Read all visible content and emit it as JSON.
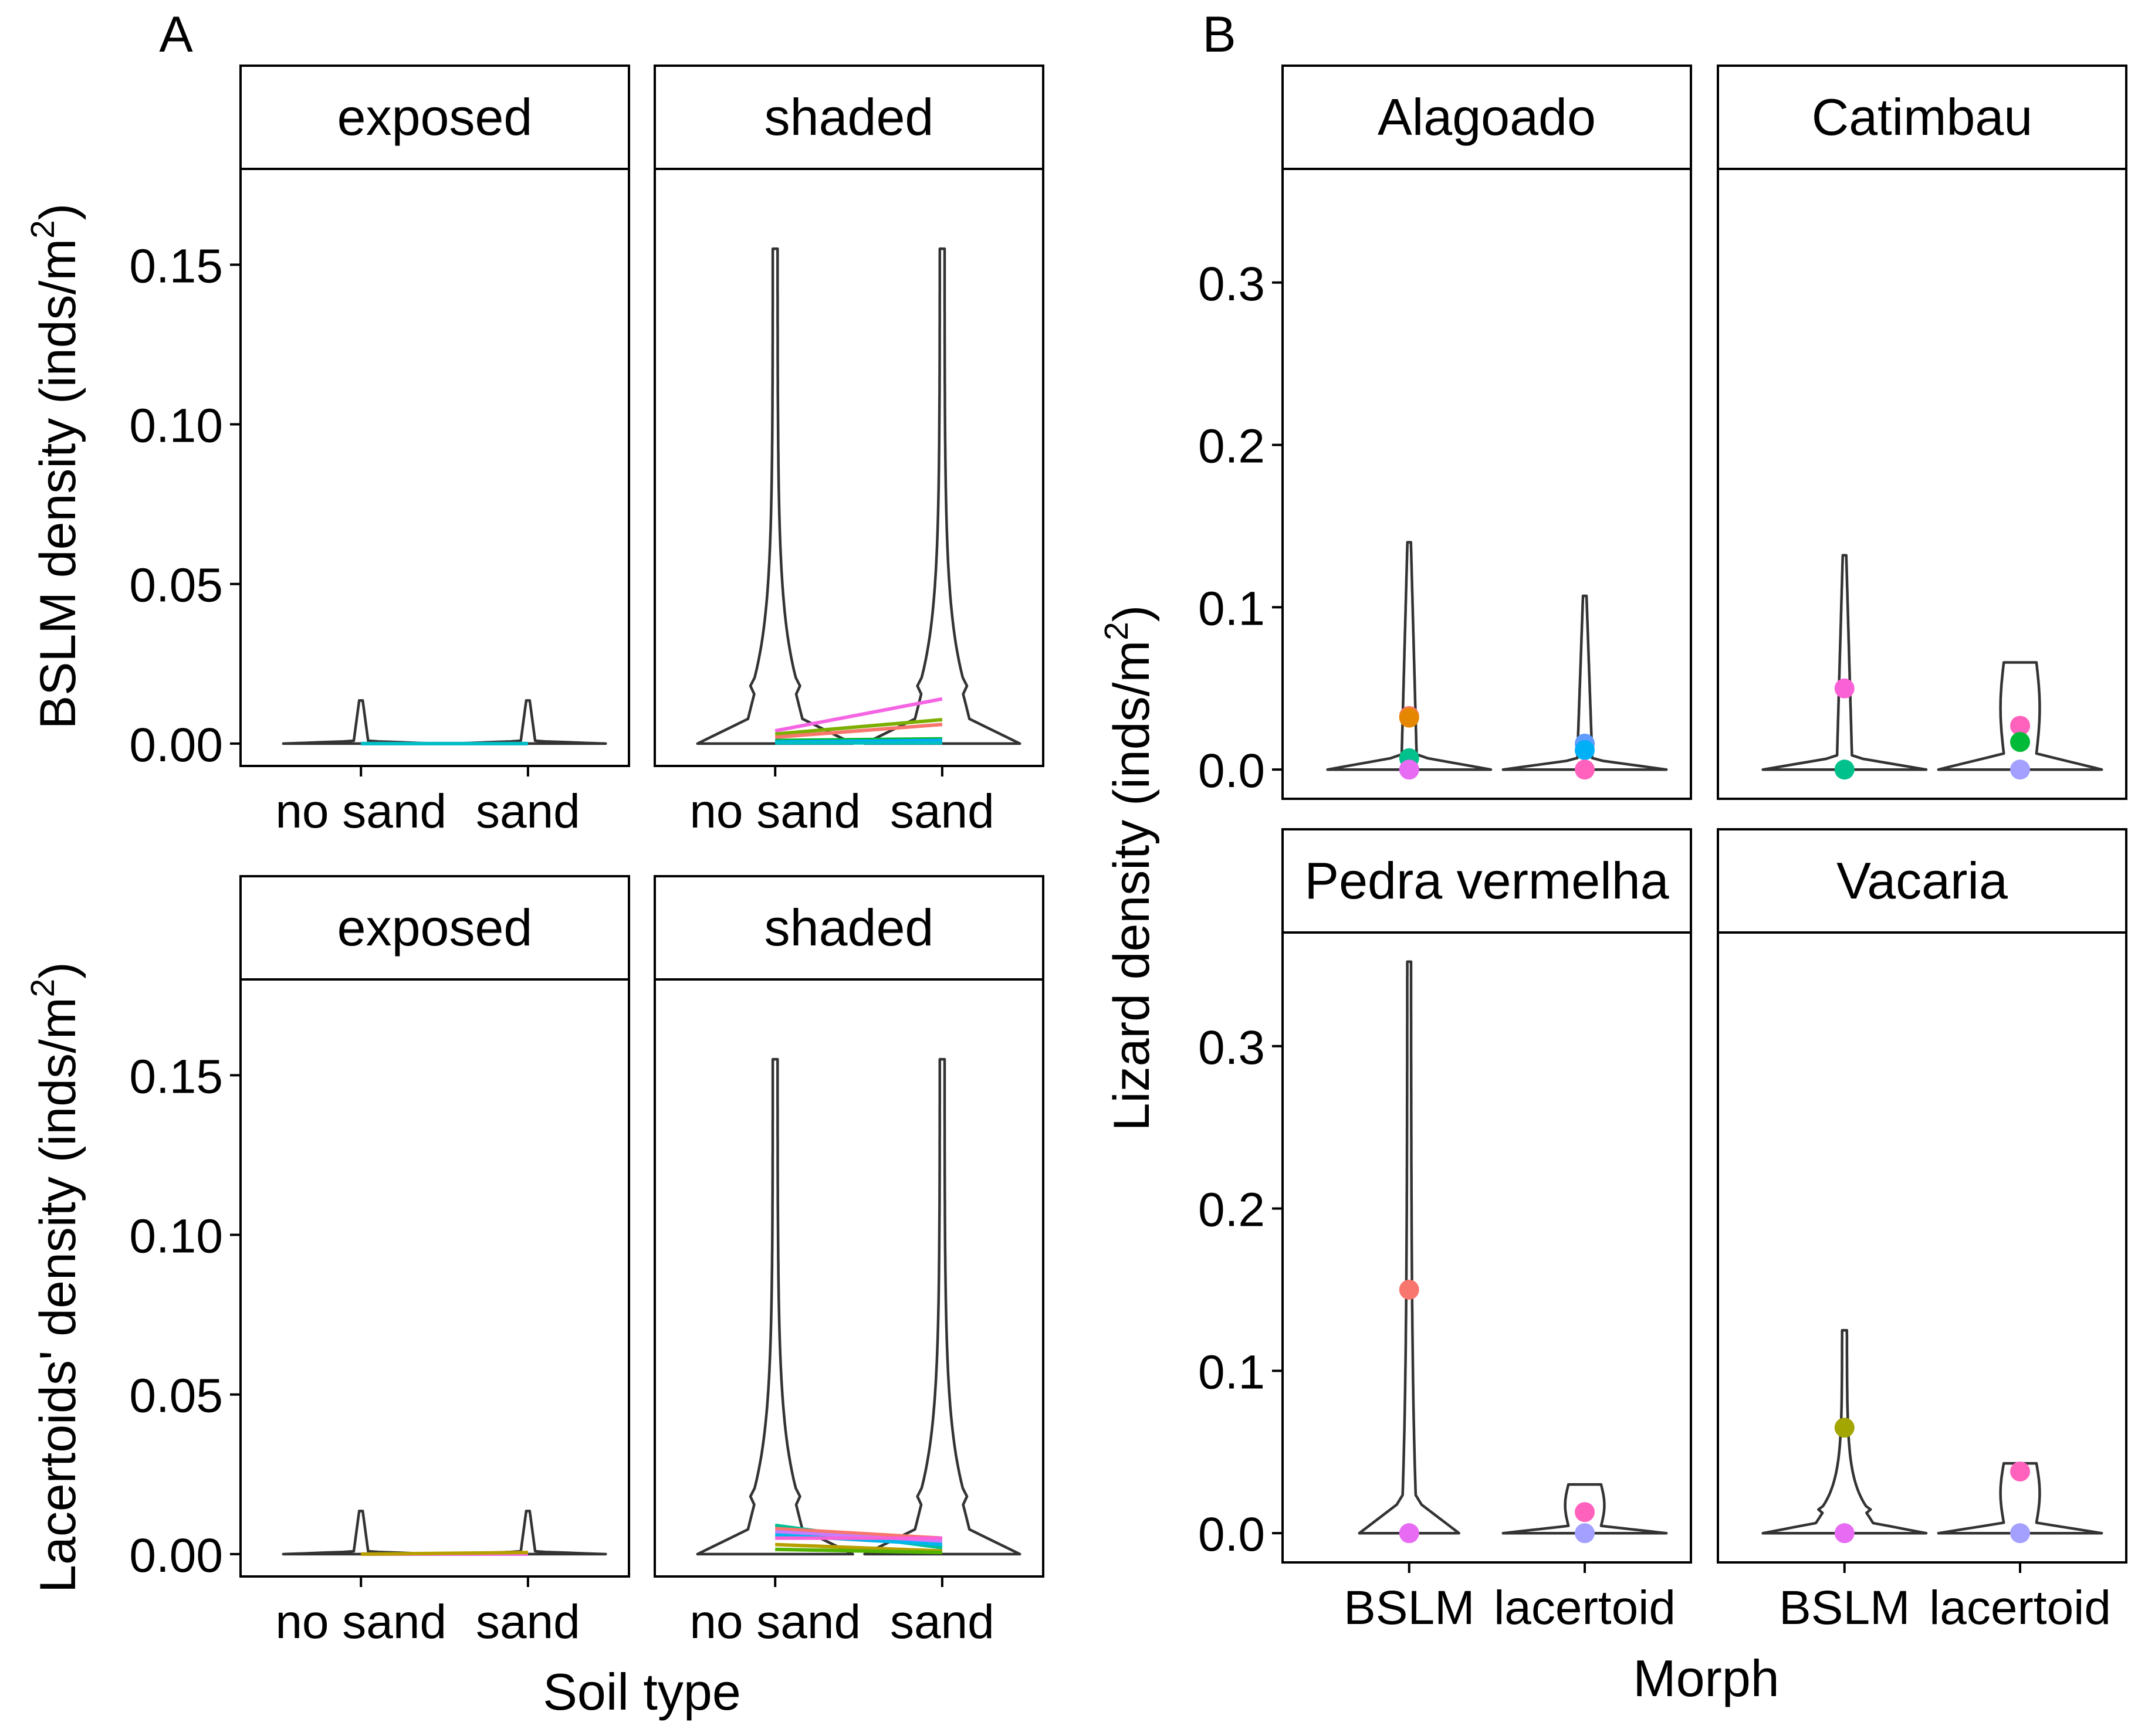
{
  "chart_data": [
    {
      "type": "violin",
      "panel_label": "A",
      "title": "",
      "xlabel": "Soil type",
      "ylabel_rows": [
        {
          "prefix": "BSLM density (inds/m",
          "sup": "2",
          "suffix": ")"
        },
        {
          "prefix": "Lacertoids' density (inds/m",
          "sup": "2",
          "suffix": ")"
        }
      ],
      "categories": [
        "no sand",
        "sand"
      ],
      "ylim": [
        -0.007,
        0.18
      ],
      "yticks": [
        0.0,
        0.05,
        0.1,
        0.15
      ],
      "ytick_labels": [
        "0.00",
        "0.05",
        "0.10",
        "0.15"
      ],
      "facets": [
        {
          "row": 0,
          "col": 0,
          "strip": "exposed",
          "violins": [
            {
              "category": "no sand",
              "max": 0.0135,
              "shape": "flat"
            },
            {
              "category": "sand",
              "max": 0.0135,
              "shape": "flat"
            }
          ],
          "lines": [
            {
              "from": 0.0,
              "to": 0.0,
              "color": "#C77CFF"
            },
            {
              "from": 0.0,
              "to": 0.0,
              "color": "#00BFC4"
            }
          ]
        },
        {
          "row": 0,
          "col": 1,
          "strip": "shaded",
          "violins": [
            {
              "category": "no sand",
              "max": 0.155,
              "shape": "wide"
            },
            {
              "category": "sand",
              "max": 0.155,
              "shape": "wide"
            }
          ],
          "lines": [
            {
              "from": 0.004,
              "to": 0.014,
              "color": "#F564E3"
            },
            {
              "from": 0.003,
              "to": 0.0075,
              "color": "#7CAE00"
            },
            {
              "from": 0.002,
              "to": 0.006,
              "color": "#F8766D"
            },
            {
              "from": 0.001,
              "to": 0.0015,
              "color": "#00BA38"
            },
            {
              "from": 0.0005,
              "to": 0.001,
              "color": "#00A9FF"
            },
            {
              "from": 0.0002,
              "to": 0.0002,
              "color": "#00BFC4"
            }
          ]
        },
        {
          "row": 1,
          "col": 0,
          "strip": "exposed",
          "violins": [
            {
              "category": "no sand",
              "max": 0.0135,
              "shape": "flat"
            },
            {
              "category": "sand",
              "max": 0.0135,
              "shape": "flat"
            }
          ],
          "lines": [
            {
              "from": 0.0,
              "to": 0.0,
              "color": "#F564E3"
            },
            {
              "from": 0.0,
              "to": 0.0005,
              "color": "#B79F00"
            }
          ]
        },
        {
          "row": 1,
          "col": 1,
          "strip": "shaded",
          "violins": [
            {
              "category": "no sand",
              "max": 0.155,
              "shape": "wide"
            },
            {
              "category": "sand",
              "max": 0.155,
              "shape": "wide"
            }
          ],
          "lines": [
            {
              "from": 0.009,
              "to": 0.002,
              "color": "#00C094"
            },
            {
              "from": 0.008,
              "to": 0.005,
              "color": "#F8766D"
            },
            {
              "from": 0.007,
              "to": 0.004,
              "color": "#C77CFF"
            },
            {
              "from": 0.006,
              "to": 0.003,
              "color": "#00B6EB"
            },
            {
              "from": 0.005,
              "to": 0.005,
              "color": "#FB61D7"
            },
            {
              "from": 0.003,
              "to": 0.001,
              "color": "#B79F00"
            },
            {
              "from": 0.0015,
              "to": 0.0005,
              "color": "#53B400"
            }
          ]
        }
      ]
    },
    {
      "type": "violin",
      "panel_label": "B",
      "title": "",
      "xlabel": "Morph",
      "ylabel_parts": {
        "prefix": "Lizard density (inds/m",
        "sup": "2",
        "suffix": ")"
      },
      "categories": [
        "BSLM",
        "lacertoid"
      ],
      "ylim": [
        -0.018,
        0.37
      ],
      "yticks": [
        0.0,
        0.1,
        0.2,
        0.3
      ],
      "ytick_labels": [
        "0.0",
        "0.1",
        "0.2",
        "0.3"
      ],
      "facets": [
        {
          "strip": "Alagoado",
          "row": 0,
          "col": 0,
          "violins": [
            {
              "category": "BSLM",
              "max": 0.14,
              "shape": "flat"
            },
            {
              "category": "lacertoid",
              "max": 0.107,
              "shape": "flat"
            }
          ],
          "points": [
            {
              "category": "BSLM",
              "value": 0.033,
              "color": "#F8766D"
            },
            {
              "category": "BSLM",
              "value": 0.032,
              "color": "#E58700"
            },
            {
              "category": "BSLM",
              "value": 0.007,
              "color": "#00C08B"
            },
            {
              "category": "BSLM",
              "value": 0.0,
              "color": "#E76BF3"
            },
            {
              "category": "lacertoid",
              "value": 0.016,
              "color": "#619CFF"
            },
            {
              "category": "lacertoid",
              "value": 0.012,
              "color": "#00B0F6"
            },
            {
              "category": "lacertoid",
              "value": 0.0,
              "color": "#FF62BC"
            }
          ]
        },
        {
          "strip": "Catimbau",
          "row": 0,
          "col": 1,
          "violins": [
            {
              "category": "BSLM",
              "max": 0.132,
              "shape": "flat"
            },
            {
              "category": "lacertoid",
              "max": 0.066,
              "shape": "bulb"
            }
          ],
          "points": [
            {
              "category": "BSLM",
              "value": 0.05,
              "color": "#FB61D7"
            },
            {
              "category": "BSLM",
              "value": 0.0,
              "color": "#00C08B"
            },
            {
              "category": "lacertoid",
              "value": 0.027,
              "color": "#FF62BC"
            },
            {
              "category": "lacertoid",
              "value": 0.017,
              "color": "#00BA38"
            },
            {
              "category": "lacertoid",
              "value": 0.0,
              "color": "#A3A0FF"
            }
          ]
        },
        {
          "strip": "Pedra vermelha",
          "row": 1,
          "col": 0,
          "violins": [
            {
              "category": "BSLM",
              "max": 0.352,
              "shape": "thin"
            },
            {
              "category": "lacertoid",
              "max": 0.03,
              "shape": "bulb"
            }
          ],
          "points": [
            {
              "category": "BSLM",
              "value": 0.15,
              "color": "#F8766D"
            },
            {
              "category": "BSLM",
              "value": 0.0,
              "color": "#E76BF3"
            },
            {
              "category": "lacertoid",
              "value": 0.013,
              "color": "#FF62BC"
            },
            {
              "category": "lacertoid",
              "value": 0.0,
              "color": "#A3A0FF"
            }
          ]
        },
        {
          "strip": "Vacaria",
          "row": 1,
          "col": 1,
          "violins": [
            {
              "category": "BSLM",
              "max": 0.125,
              "shape": "wide"
            },
            {
              "category": "lacertoid",
              "max": 0.043,
              "shape": "bulb"
            }
          ],
          "points": [
            {
              "category": "BSLM",
              "value": 0.065,
              "color": "#A3A500"
            },
            {
              "category": "BSLM",
              "value": 0.0,
              "color": "#E76BF3"
            },
            {
              "category": "lacertoid",
              "value": 0.038,
              "color": "#FF62BC"
            },
            {
              "category": "lacertoid",
              "value": 0.0,
              "color": "#A3A0FF"
            }
          ]
        }
      ]
    }
  ]
}
